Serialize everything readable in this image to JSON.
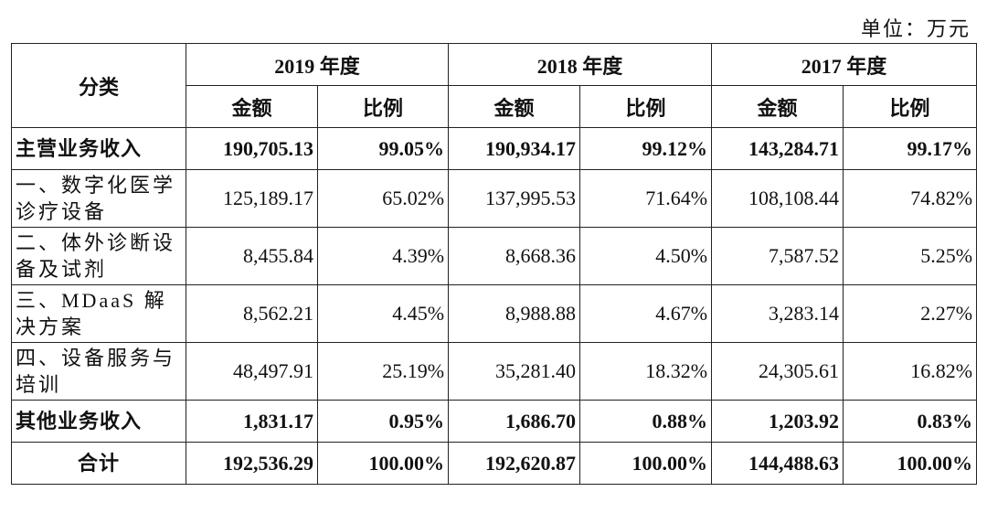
{
  "unit": "单位：万元",
  "table": {
    "category": "分类",
    "years": [
      "2019 年度",
      "2018 年度",
      "2017 年度"
    ],
    "subheaders": [
      "金额",
      "比例",
      "金额",
      "比例",
      "金额",
      "比例"
    ],
    "rows": [
      [
        "主营业务收入",
        "190,705.13",
        "99.05%",
        "190,934.17",
        "99.12%",
        "143,284.71",
        "99.17%"
      ],
      [
        "一、数字化医学诊疗设备",
        "125,189.17",
        "65.02%",
        "137,995.53",
        "71.64%",
        "108,108.44",
        "74.82%"
      ],
      [
        "二、体外诊断设备及试剂",
        "8,455.84",
        "4.39%",
        "8,668.36",
        "4.50%",
        "7,587.52",
        "5.25%"
      ],
      [
        "三、MDaaS 解决方案",
        "8,562.21",
        "4.45%",
        "8,988.88",
        "4.67%",
        "3,283.14",
        "2.27%"
      ],
      [
        "四、设备服务与培训",
        "48,497.91",
        "25.19%",
        "35,281.40",
        "18.32%",
        "24,305.61",
        "16.82%"
      ],
      [
        "其他业务收入",
        "1,831.17",
        "0.95%",
        "1,686.70",
        "0.88%",
        "1,203.92",
        "0.83%"
      ],
      [
        "合计",
        "192,536.29",
        "100.00%",
        "192,620.87",
        "100.00%",
        "144,488.63",
        "100.00%"
      ]
    ]
  }
}
